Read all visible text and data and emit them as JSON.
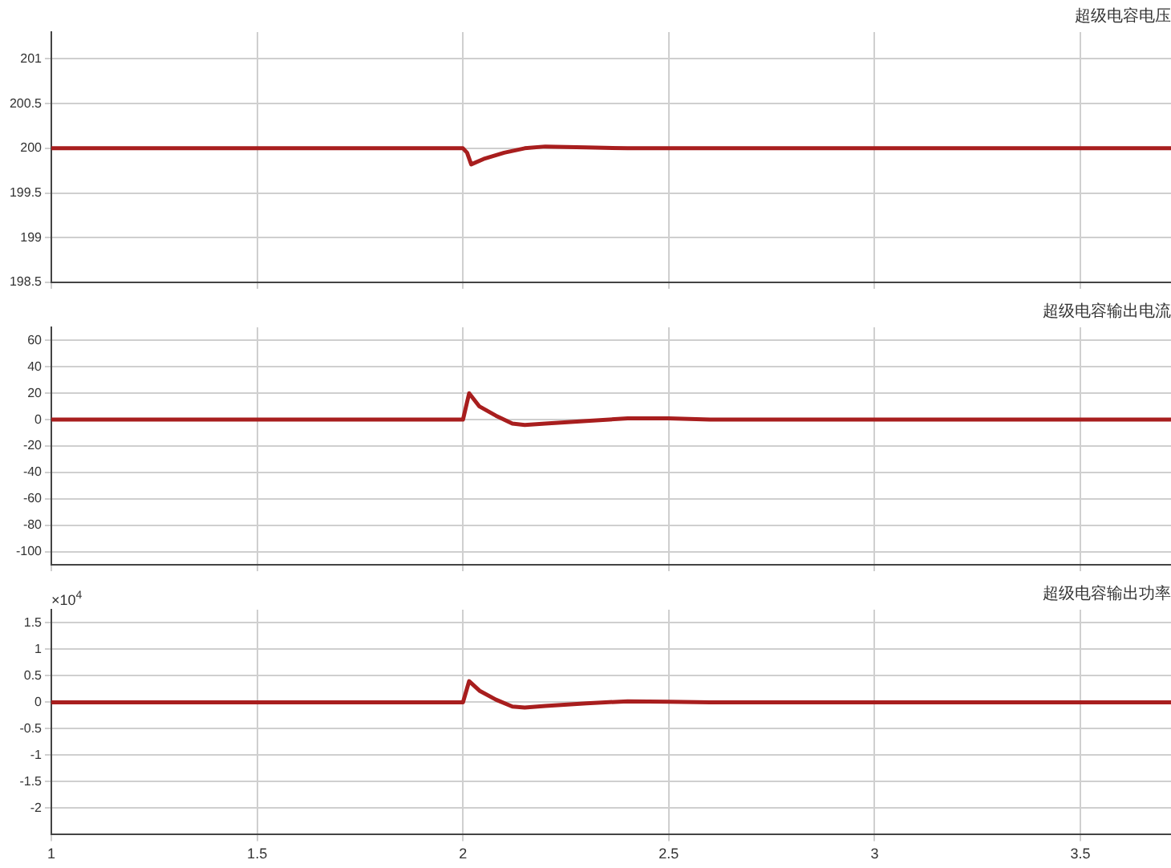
{
  "chart_data": [
    {
      "type": "line",
      "title": "超级电容电压",
      "x": [
        1,
        2.0,
        2.01,
        2.02,
        2.05,
        2.1,
        2.15,
        2.2,
        2.3,
        2.4,
        3.72
      ],
      "series": [
        {
          "color": "#a81e1e",
          "values": [
            200,
            200,
            199.95,
            199.82,
            199.88,
            199.95,
            200.0,
            200.02,
            200.01,
            200,
            200
          ]
        }
      ],
      "xlim": [
        1,
        3.72
      ],
      "xticks": [
        1,
        1.5,
        2,
        2.5,
        3,
        3.5
      ],
      "ylim": [
        198.5,
        201.3
      ],
      "yticks": [
        198.5,
        199,
        199.5,
        200,
        200.5,
        201
      ],
      "grid": true,
      "tick_labels": "y",
      "marker": "none",
      "line_style": "solid"
    },
    {
      "type": "line",
      "title": "超级电容输出电流",
      "x": [
        1,
        2.0,
        2.015,
        2.04,
        2.08,
        2.12,
        2.15,
        2.2,
        2.3,
        2.4,
        2.5,
        2.6,
        3.72
      ],
      "series": [
        {
          "color": "#a81e1e",
          "values": [
            0,
            0,
            20,
            10,
            3,
            -3,
            -4,
            -3,
            -1,
            1,
            1,
            0,
            0
          ]
        }
      ],
      "xlim": [
        1,
        3.72
      ],
      "xticks": [
        1,
        1.5,
        2,
        2.5,
        3,
        3.5
      ],
      "ylim": [
        -110,
        70
      ],
      "yticks": [
        -100,
        -80,
        -60,
        -40,
        -20,
        0,
        20,
        40,
        60
      ],
      "grid": true,
      "tick_labels": "y",
      "marker": "none",
      "line_style": "solid"
    },
    {
      "type": "line",
      "title": "超级电容输出功率",
      "annotations": [
        "×10$^{4}$"
      ],
      "x": [
        1,
        2.0,
        2.015,
        2.04,
        2.08,
        2.12,
        2.15,
        2.2,
        2.3,
        2.4,
        2.5,
        2.6,
        3.72
      ],
      "series": [
        {
          "color": "#a81e1e",
          "values": [
            0,
            0,
            0.4,
            0.22,
            0.05,
            -0.08,
            -0.1,
            -0.07,
            -0.02,
            0.02,
            0.01,
            0,
            0
          ]
        }
      ],
      "xlim": [
        1,
        3.72
      ],
      "xticks": [
        1,
        1.5,
        2,
        2.5,
        3,
        3.5
      ],
      "ylim": [
        -2.5,
        1.75
      ],
      "yticks": [
        -2,
        -1.5,
        -1,
        -0.5,
        0,
        0.5,
        1,
        1.5
      ],
      "grid": true,
      "marker": "none",
      "line_style": "solid"
    }
  ]
}
